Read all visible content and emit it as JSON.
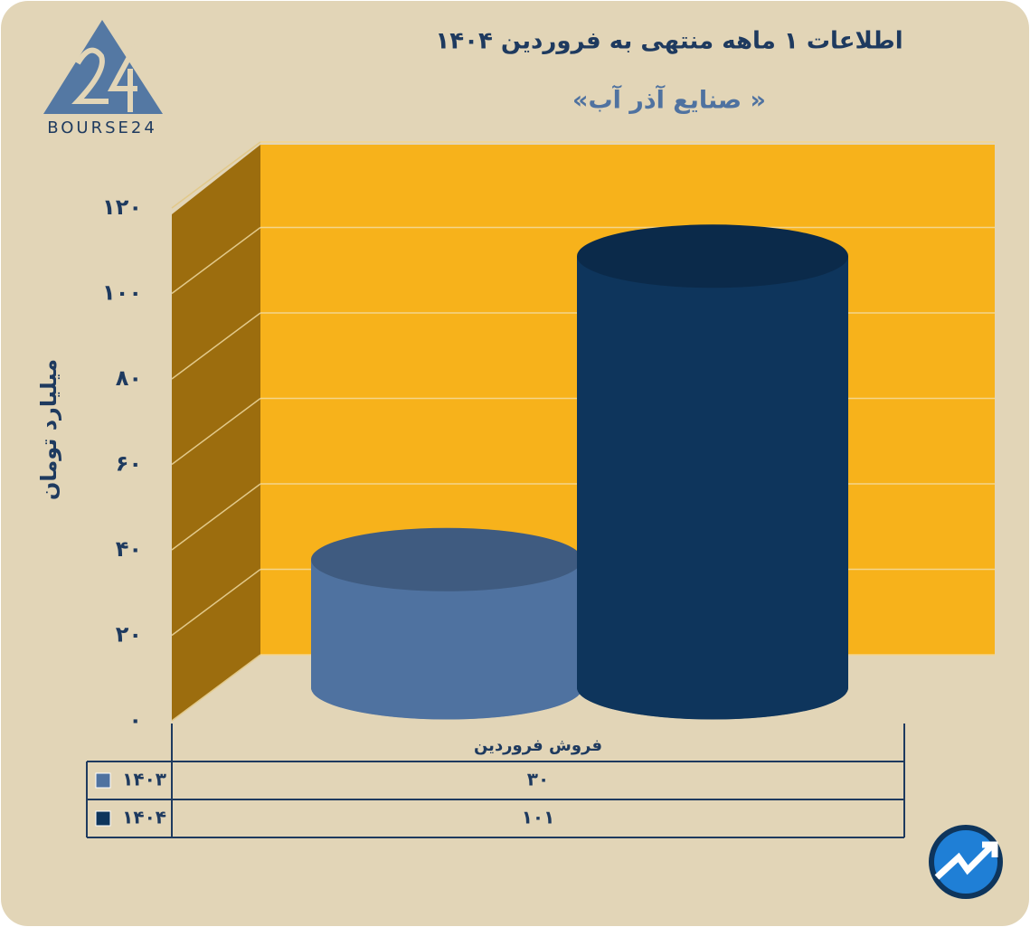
{
  "logo": {
    "text": "BOURSE24"
  },
  "chart_data": {
    "type": "bar",
    "title": "اطلاعات ۱ ماهه منتهی به فروردین ۱۴۰۴",
    "subtitle": "«صنایع آذر آب »",
    "y_label": "میلیارد تومان",
    "categories": [
      "فروش فروردین"
    ],
    "series": [
      {
        "name": "۱۴۰۳",
        "color": "#4f72a0",
        "values": [
          30
        ],
        "value_labels": [
          "۳۰"
        ]
      },
      {
        "name": "۱۴۰۴",
        "color": "#0e355c",
        "values": [
          101
        ],
        "value_labels": [
          "۱۰۱"
        ]
      }
    ],
    "ylim": [
      0,
      120
    ],
    "yticks": [
      {
        "value": 0,
        "label": "۰"
      },
      {
        "value": 20,
        "label": "۲۰"
      },
      {
        "value": 40,
        "label": "۴۰"
      },
      {
        "value": 60,
        "label": "۶۰"
      },
      {
        "value": 80,
        "label": "۸۰"
      },
      {
        "value": 100,
        "label": "۱۰۰"
      },
      {
        "value": 120,
        "label": "۱۲۰"
      }
    ],
    "grid": true
  }
}
